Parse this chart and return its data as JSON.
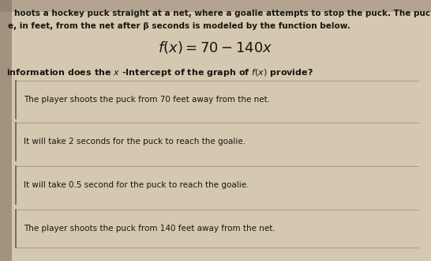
{
  "bg_color": "#b8a888",
  "paper_color": "#d4c8b0",
  "paper_color2": "#ccc4ac",
  "header_text1": "hoots a hockey puck straight at a net, where a goalie attempts to stop the puck. The puck's",
  "header_text2": "e, in feet, from the net after β seconds is modeled by the function below.",
  "question_text": "information does the β -Intercept of the graph of f(β) provide?",
  "choices": [
    "The player shoots the puck from 70 feet away from the net.",
    "It will take 2 seconds for the puck to reach the goalie.",
    "It will take 0.5 second for the puck to reach the goalie.",
    "The player shoots the puck from 140 feet away from the net."
  ],
  "header_fontsize": 7.5,
  "formula_fontsize": 13,
  "question_fontsize": 8.0,
  "choice_fontsize": 7.5,
  "text_color": "#1a1610",
  "line_color": "#666050",
  "corner_dark": "#807060"
}
